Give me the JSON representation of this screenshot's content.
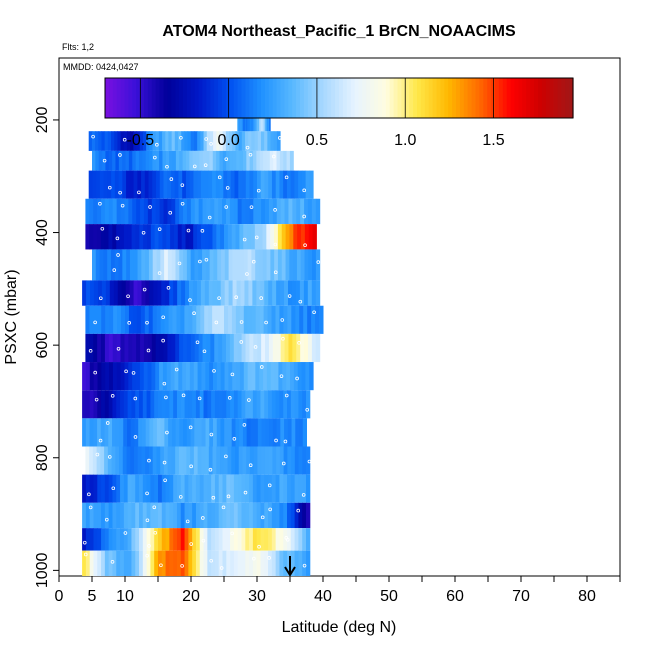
{
  "chart_data": {
    "type": "heatmap",
    "title": "ATOM4 Northeast_Pacific_1 BrCN_NOAACIMS",
    "flights_label": "Flts: 1,2",
    "dates_label": "MMDD: 0424,0427",
    "xlabel": "Latitude (deg N)",
    "ylabel": "PSXC (mbar)",
    "xlim": [
      0,
      85
    ],
    "ylim": [
      1010,
      90
    ],
    "y_reversed": true,
    "x_ticks": [
      0,
      5,
      10,
      20,
      30,
      40,
      50,
      60,
      70,
      80
    ],
    "x_tick_labels": [
      "0",
      "5",
      "10",
      "20",
      "30",
      "40",
      "50",
      "60",
      "70",
      "80"
    ],
    "x_minor_ticks": [
      15,
      25,
      35,
      45,
      55,
      65,
      75,
      85
    ],
    "y_ticks": [
      200,
      400,
      600,
      800,
      1000
    ],
    "y_tick_labels": [
      "200",
      "400",
      "600",
      "800",
      "1000"
    ],
    "colorbar": {
      "min": -0.7,
      "max": 1.95,
      "ticks": [
        -0.5,
        0.0,
        0.5,
        1.0,
        1.5
      ],
      "tick_labels": [
        "-0.5",
        "0.0",
        "0.5",
        "1.0",
        "1.5"
      ],
      "colors": [
        "#7a10e0",
        "#3a10d8",
        "#00009a",
        "#0018c8",
        "#0050f0",
        "#1e90ff",
        "#58b8ff",
        "#a8d8ff",
        "#e6f3ff",
        "#fffde0",
        "#ffe84a",
        "#ffb800",
        "#ff6a00",
        "#ff0000",
        "#cc0000",
        "#a01818"
      ]
    },
    "grid": false,
    "legend": "none",
    "marker_latitude": 35,
    "bands": [
      {
        "p_top": 220,
        "p_bot": 255,
        "lat_start": 4.5,
        "lat_end": 33.5,
        "values": [
          0.1,
          0.0,
          -0.3,
          0.2,
          0.4,
          0.1,
          0.8,
          0.3,
          0.5,
          0.2
        ]
      },
      {
        "p_top": 255,
        "p_bot": 290,
        "lat_start": 5.0,
        "lat_end": 35.5,
        "values": [
          0.2,
          0.05,
          0.1,
          0.2,
          0.3,
          0.55,
          0.3,
          0.45,
          0.7,
          0.5
        ]
      },
      {
        "p_top": 290,
        "p_bot": 340,
        "lat_start": 4.5,
        "lat_end": 38.5,
        "values": [
          -0.1,
          0.0,
          -0.2,
          0.1,
          0.0,
          0.2,
          0.05,
          0.25,
          0.1,
          0.3
        ]
      },
      {
        "p_top": 340,
        "p_bot": 385,
        "lat_start": 4.0,
        "lat_end": 39.5,
        "values": [
          0.1,
          0.2,
          0.0,
          -0.1,
          0.15,
          0.3,
          0.1,
          0.25,
          0.35,
          0.2
        ]
      },
      {
        "p_top": 385,
        "p_bot": 430,
        "lat_start": 4.0,
        "lat_end": 39.0,
        "values": [
          -0.4,
          -0.3,
          -0.1,
          0.0,
          -0.2,
          0.1,
          0.3,
          0.55,
          1.4,
          1.7
        ]
      },
      {
        "p_top": 430,
        "p_bot": 485,
        "lat_start": 5.0,
        "lat_end": 39.5,
        "values": [
          0.2,
          0.1,
          0.3,
          0.7,
          0.2,
          0.4,
          0.6,
          0.45,
          0.3,
          0.2
        ]
      },
      {
        "p_top": 485,
        "p_bot": 530,
        "lat_start": 3.5,
        "lat_end": 39.5,
        "values": [
          0.0,
          -0.1,
          -0.5,
          -0.2,
          0.2,
          0.4,
          0.55,
          0.35,
          0.2,
          0.3
        ]
      },
      {
        "p_top": 530,
        "p_bot": 580,
        "lat_start": 4.0,
        "lat_end": 40.0,
        "values": [
          0.1,
          0.2,
          0.0,
          0.15,
          0.3,
          0.6,
          0.4,
          0.3,
          0.2,
          0.1
        ]
      },
      {
        "p_top": 580,
        "p_bot": 630,
        "lat_start": 4.0,
        "lat_end": 39.5,
        "values": [
          -0.2,
          -0.5,
          -0.4,
          -0.3,
          0.1,
          0.2,
          0.5,
          0.7,
          1.1,
          0.6
        ]
      },
      {
        "p_top": 630,
        "p_bot": 680,
        "lat_start": 3.5,
        "lat_end": 38.5,
        "values": [
          -0.5,
          -0.3,
          -0.1,
          0.2,
          0.3,
          0.2,
          0.3,
          0.4,
          0.3,
          0.2
        ]
      },
      {
        "p_top": 680,
        "p_bot": 730,
        "lat_start": 3.5,
        "lat_end": 38.0,
        "values": [
          -0.5,
          -0.3,
          0.0,
          0.1,
          0.2,
          0.1,
          0.2,
          0.3,
          0.2,
          0.2
        ]
      },
      {
        "p_top": 730,
        "p_bot": 780,
        "lat_start": 3.5,
        "lat_end": 37.5,
        "values": [
          0.2,
          0.3,
          0.1,
          0.4,
          0.2,
          0.3,
          0.2,
          0.1,
          0.2,
          0.15
        ]
      },
      {
        "p_top": 780,
        "p_bot": 830,
        "lat_start": 4.0,
        "lat_end": 38.0,
        "values": [
          0.8,
          0.3,
          0.1,
          0.2,
          0.4,
          0.3,
          0.2,
          0.3,
          0.2,
          0.1
        ]
      },
      {
        "p_top": 830,
        "p_bot": 880,
        "lat_start": 3.5,
        "lat_end": 38.0,
        "values": [
          -0.2,
          0.0,
          0.3,
          0.1,
          0.3,
          0.35,
          0.4,
          0.2,
          0.3,
          0.2
        ]
      },
      {
        "p_top": 880,
        "p_bot": 925,
        "lat_start": 3.5,
        "lat_end": 38.0,
        "values": [
          0.3,
          0.2,
          0.35,
          0.4,
          0.2,
          0.3,
          0.4,
          0.3,
          0.2,
          -0.5
        ]
      },
      {
        "p_top": 925,
        "p_bot": 965,
        "lat_start": 3.5,
        "lat_end": 38.0,
        "values": [
          -0.2,
          0.1,
          0.4,
          1.1,
          1.6,
          0.6,
          0.8,
          1.1,
          0.8,
          0.3
        ]
      },
      {
        "p_top": 965,
        "p_bot": 1010,
        "lat_start": 3.5,
        "lat_end": 38.0,
        "values": [
          1.1,
          0.4,
          0.3,
          1.3,
          1.5,
          0.6,
          0.7,
          0.8,
          0.4,
          0.2
        ]
      },
      {
        "p_top": 170,
        "p_bot": 220,
        "lat_start": 27.0,
        "lat_end": 32.0,
        "values": [
          0.3,
          0.1,
          0.2,
          0.6,
          0.1
        ]
      }
    ]
  }
}
